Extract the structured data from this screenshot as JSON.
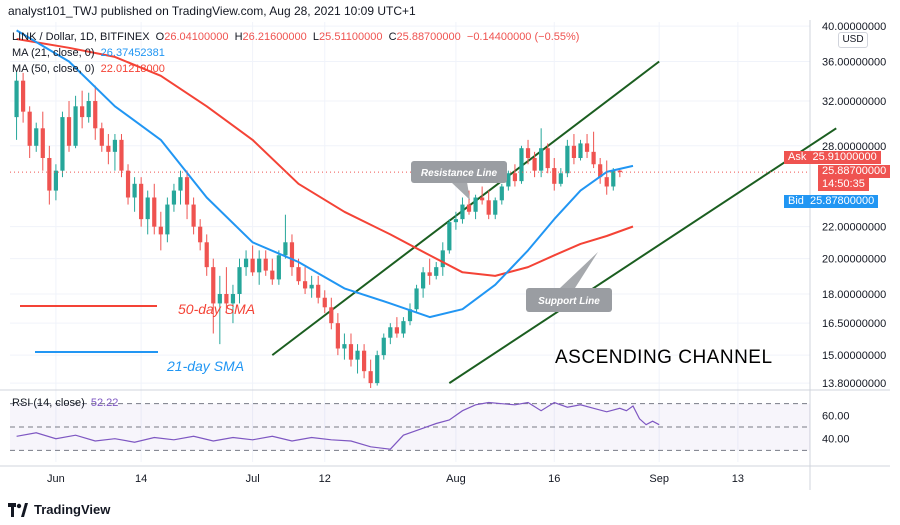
{
  "header": {
    "published_by": "analyst101_TWJ published on TradingView.com, Aug 28, 2021 10:09 UTC+1"
  },
  "legend": {
    "symbol": "LINK / Dollar, 1D, BITFINEX",
    "open_label": "O",
    "open": "26.04100000",
    "high_label": "H",
    "high": "26.21600000",
    "low_label": "L",
    "low": "25.51100000",
    "close_label": "C",
    "close": "25.88700000",
    "change": "−0.14400000 (−0.55%)",
    "ma21_label": "MA (21, close, 0)",
    "ma21_value": "26.37452381",
    "ma50_label": "MA (50, close, 0)",
    "ma50_value": "22.01218000",
    "rsi_label": "RSI (14, close)",
    "rsi_value": "52.22"
  },
  "currency": "USD",
  "tags": {
    "ask_label": "Ask",
    "ask_value": "25.91000000",
    "last_value": "25.88700000",
    "countdown": "14:50:35",
    "bid_label": "Bid",
    "bid_value": "25.87800000"
  },
  "annotations": {
    "resistance_line": "Resistance Line",
    "support_line": "Support Line",
    "ma50_sma": "50-day SMA",
    "ma21_sma": "21-day SMA",
    "channel": "ASCENDING CHANNEL"
  },
  "footer": {
    "brand": "TradingView"
  },
  "colors": {
    "up": "#26a69a",
    "down": "#ef5350",
    "ma21": "#2196f3",
    "ma50": "#f44336",
    "channel": "#1b5e20",
    "rsi": "#7e57c2",
    "ask": "#ef5350",
    "bid": "#2196f3"
  },
  "chart_data": {
    "type": "candlestick",
    "price_axis": {
      "scale": "log",
      "ticks": [
        "40.00000000",
        "36.00000000",
        "32.00000000",
        "28.00000000",
        "22.00000000",
        "20.00000000",
        "18.00000000",
        "16.50000000",
        "15.00000000",
        "13.80000000"
      ],
      "tick_values": [
        40,
        36,
        32,
        28,
        22,
        20,
        18,
        16.5,
        15,
        13.8
      ],
      "range": [
        13.6,
        40.5
      ]
    },
    "time_axis": {
      "labels": [
        "Jun",
        "14",
        "Jul",
        "12",
        "Aug",
        "16",
        "Sep",
        "13"
      ],
      "label_dates": [
        "2021-06-01",
        "2021-06-14",
        "2021-07-01",
        "2021-07-12",
        "2021-08-01",
        "2021-08-16",
        "2021-09-01",
        "2021-09-13"
      ],
      "range": [
        "2021-05-25",
        "2021-09-24"
      ]
    },
    "candles": {
      "start_date": "2021-05-26",
      "ohlc": [
        [
          30.5,
          35.0,
          28.5,
          34.0
        ],
        [
          34.0,
          34.8,
          30.0,
          31.0
        ],
        [
          31.0,
          31.5,
          27.0,
          28.0
        ],
        [
          28.0,
          30.0,
          27.5,
          29.5
        ],
        [
          29.5,
          31.0,
          26.0,
          27.0
        ],
        [
          27.0,
          28.0,
          23.5,
          24.5
        ],
        [
          24.5,
          26.5,
          23.8,
          26.0
        ],
        [
          26.0,
          31.0,
          25.5,
          30.5
        ],
        [
          30.5,
          32.0,
          27.5,
          28.0
        ],
        [
          28.0,
          32.5,
          27.8,
          31.5
        ],
        [
          31.5,
          33.0,
          29.5,
          30.5
        ],
        [
          30.5,
          32.8,
          30.0,
          32.0
        ],
        [
          32.0,
          33.5,
          28.5,
          29.5
        ],
        [
          29.5,
          30.0,
          27.5,
          28.0
        ],
        [
          28.0,
          29.0,
          26.5,
          27.5
        ],
        [
          27.5,
          29.0,
          26.0,
          28.5
        ],
        [
          28.5,
          29.0,
          25.5,
          26.0
        ],
        [
          26.0,
          26.5,
          23.5,
          24.0
        ],
        [
          24.0,
          25.5,
          23.0,
          25.0
        ],
        [
          25.0,
          25.5,
          22.0,
          22.5
        ],
        [
          22.5,
          24.5,
          21.5,
          24.0
        ],
        [
          24.0,
          25.0,
          21.5,
          22.0
        ],
        [
          22.0,
          23.0,
          20.5,
          21.5
        ],
        [
          21.5,
          24.0,
          21.0,
          23.5
        ],
        [
          23.5,
          25.0,
          23.0,
          24.5
        ],
        [
          24.5,
          26.0,
          23.5,
          25.5
        ],
        [
          25.5,
          26.0,
          22.5,
          23.5
        ],
        [
          23.5,
          24.0,
          21.5,
          22.0
        ],
        [
          22.0,
          22.5,
          20.5,
          21.0
        ],
        [
          21.0,
          21.5,
          19.0,
          19.5
        ],
        [
          19.5,
          20.0,
          16.0,
          17.5
        ],
        [
          17.5,
          19.0,
          15.5,
          18.0
        ],
        [
          18.0,
          19.5,
          17.0,
          17.5
        ],
        [
          17.5,
          18.5,
          16.5,
          18.0
        ],
        [
          18.0,
          20.0,
          17.5,
          19.5
        ],
        [
          19.5,
          20.5,
          19.0,
          20.0
        ],
        [
          20.0,
          20.8,
          19.0,
          19.2
        ],
        [
          19.2,
          20.5,
          18.5,
          20.0
        ],
        [
          20.0,
          20.5,
          19.0,
          19.3
        ],
        [
          19.3,
          20.0,
          18.5,
          18.8
        ],
        [
          18.8,
          20.5,
          18.5,
          20.2
        ],
        [
          20.2,
          22.8,
          20.0,
          21.0
        ],
        [
          21.0,
          21.5,
          19.0,
          19.5
        ],
        [
          19.5,
          20.0,
          18.5,
          18.7
        ],
        [
          18.7,
          19.5,
          18.0,
          18.3
        ],
        [
          18.3,
          19.0,
          17.8,
          18.5
        ],
        [
          18.5,
          19.0,
          17.5,
          17.8
        ],
        [
          17.8,
          18.2,
          17.0,
          17.3
        ],
        [
          17.3,
          17.8,
          16.2,
          16.5
        ],
        [
          16.5,
          17.0,
          15.0,
          15.3
        ],
        [
          15.3,
          16.0,
          14.8,
          15.5
        ],
        [
          15.5,
          16.0,
          14.5,
          14.8
        ],
        [
          14.8,
          15.5,
          14.2,
          15.2
        ],
        [
          15.2,
          15.5,
          14.0,
          14.3
        ],
        [
          14.3,
          14.8,
          13.6,
          13.8
        ],
        [
          13.8,
          15.2,
          13.7,
          15.0
        ],
        [
          15.0,
          16.0,
          14.8,
          15.8
        ],
        [
          15.8,
          16.5,
          15.5,
          16.3
        ],
        [
          16.3,
          16.8,
          15.8,
          16.0
        ],
        [
          16.0,
          16.8,
          15.8,
          16.6
        ],
        [
          16.6,
          17.5,
          16.4,
          17.2
        ],
        [
          17.2,
          18.5,
          17.0,
          18.3
        ],
        [
          18.3,
          19.5,
          17.8,
          19.2
        ],
        [
          19.2,
          20.0,
          18.5,
          19.0
        ],
        [
          19.0,
          19.8,
          18.8,
          19.5
        ],
        [
          19.5,
          21.0,
          19.0,
          20.5
        ],
        [
          20.5,
          22.5,
          20.3,
          22.3
        ],
        [
          22.3,
          23.0,
          21.8,
          22.5
        ],
        [
          22.5,
          24.0,
          22.2,
          23.5
        ],
        [
          23.5,
          24.5,
          22.8,
          23.0
        ],
        [
          23.0,
          24.2,
          22.5,
          24.0
        ],
        [
          24.0,
          24.8,
          23.5,
          23.8
        ],
        [
          23.8,
          24.5,
          22.5,
          22.8
        ],
        [
          22.8,
          24.0,
          22.5,
          23.8
        ],
        [
          23.8,
          25.0,
          23.5,
          24.8
        ],
        [
          24.8,
          26.0,
          24.5,
          25.8
        ],
        [
          25.8,
          26.5,
          24.8,
          25.2
        ],
        [
          25.2,
          28.0,
          25.0,
          27.8
        ],
        [
          27.8,
          28.5,
          26.5,
          27.0
        ],
        [
          27.0,
          27.5,
          25.5,
          26.0
        ],
        [
          26.0,
          29.5,
          25.5,
          27.8
        ],
        [
          27.8,
          28.2,
          25.8,
          26.2
        ],
        [
          26.2,
          27.0,
          24.5,
          25.0
        ],
        [
          25.0,
          26.2,
          24.8,
          25.8
        ],
        [
          25.8,
          28.5,
          25.5,
          28.0
        ],
        [
          28.0,
          29.0,
          26.5,
          27.0
        ],
        [
          27.0,
          28.5,
          26.8,
          28.2
        ],
        [
          28.2,
          29.0,
          27.0,
          27.5
        ],
        [
          27.5,
          29.2,
          26.2,
          26.5
        ],
        [
          26.5,
          27.0,
          25.0,
          25.5
        ],
        [
          25.5,
          26.8,
          24.2,
          24.8
        ],
        [
          24.8,
          26.2,
          24.5,
          26.0
        ],
        [
          26.0,
          26.2,
          25.5,
          25.887
        ]
      ]
    },
    "ma21": [
      [
        "2021-05-26",
        39.5
      ],
      [
        "2021-06-03",
        36.0
      ],
      [
        "2021-06-10",
        31.5
      ],
      [
        "2021-06-17",
        28.5
      ],
      [
        "2021-06-24",
        24.0
      ],
      [
        "2021-07-01",
        21.0
      ],
      [
        "2021-07-08",
        19.8
      ],
      [
        "2021-07-15",
        18.3
      ],
      [
        "2021-07-22",
        17.5
      ],
      [
        "2021-07-28",
        16.8
      ],
      [
        "2021-08-02",
        17.2
      ],
      [
        "2021-08-07",
        18.5
      ],
      [
        "2021-08-12",
        20.5
      ],
      [
        "2021-08-16",
        22.5
      ],
      [
        "2021-08-20",
        24.5
      ],
      [
        "2021-08-24",
        25.9
      ],
      [
        "2021-08-28",
        26.37
      ]
    ],
    "ma50": [
      [
        "2021-05-26",
        38.5
      ],
      [
        "2021-06-03",
        37.5
      ],
      [
        "2021-06-10",
        36.5
      ],
      [
        "2021-06-17",
        34.5
      ],
      [
        "2021-06-24",
        31.5
      ],
      [
        "2021-07-01",
        28.5
      ],
      [
        "2021-07-08",
        25.0
      ],
      [
        "2021-07-15",
        23.0
      ],
      [
        "2021-07-22",
        21.5
      ],
      [
        "2021-07-28",
        20.2
      ],
      [
        "2021-08-02",
        19.2
      ],
      [
        "2021-08-07",
        19.0
      ],
      [
        "2021-08-12",
        19.5
      ],
      [
        "2021-08-16",
        20.2
      ],
      [
        "2021-08-20",
        20.9
      ],
      [
        "2021-08-24",
        21.4
      ],
      [
        "2021-08-28",
        22.01
      ]
    ],
    "channel_lines": [
      [
        [
          "2021-07-04",
          15.0
        ],
        [
          "2021-09-01",
          36.0
        ]
      ],
      [
        [
          "2021-07-31",
          13.8
        ],
        [
          "2021-09-28",
          29.5
        ]
      ]
    ],
    "rsi": {
      "range": [
        20,
        80
      ],
      "ticks": [
        "60.00",
        "40.00"
      ],
      "tick_values": [
        60,
        40
      ],
      "levels": [
        70,
        50,
        30
      ],
      "points": [
        [
          0,
          42
        ],
        [
          3,
          45
        ],
        [
          6,
          40
        ],
        [
          9,
          43
        ],
        [
          12,
          38
        ],
        [
          15,
          40
        ],
        [
          18,
          37
        ],
        [
          21,
          41
        ],
        [
          24,
          39
        ],
        [
          27,
          42
        ],
        [
          30,
          38
        ],
        [
          33,
          41
        ],
        [
          36,
          39
        ],
        [
          39,
          42
        ],
        [
          42,
          38
        ],
        [
          45,
          41
        ],
        [
          48,
          39
        ],
        [
          51,
          38
        ],
        [
          54,
          33
        ],
        [
          57,
          31
        ],
        [
          59,
          43
        ],
        [
          62,
          49
        ],
        [
          64,
          53
        ],
        [
          66,
          56
        ],
        [
          68,
          64
        ],
        [
          70,
          69
        ],
        [
          72,
          71
        ],
        [
          74,
          70
        ],
        [
          76,
          69
        ],
        [
          78,
          71
        ],
        [
          80,
          64
        ],
        [
          82,
          71
        ],
        [
          84,
          67
        ],
        [
          86,
          69
        ],
        [
          88,
          66
        ],
        [
          90,
          63
        ],
        [
          92,
          66
        ],
        [
          93,
          64
        ],
        [
          94,
          68
        ],
        [
          95,
          57
        ],
        [
          96,
          52
        ],
        [
          97,
          55
        ],
        [
          98,
          52
        ]
      ]
    }
  }
}
